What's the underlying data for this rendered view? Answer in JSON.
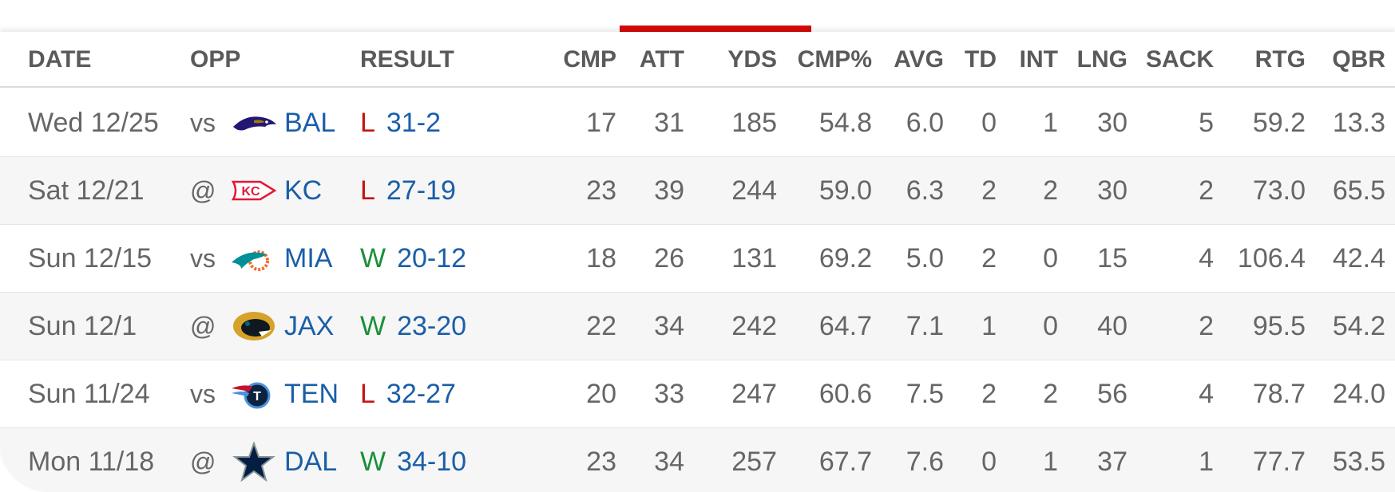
{
  "columns": {
    "date": "DATE",
    "opp": "OPP",
    "result": "RESULT",
    "cmp": "CMP",
    "att": "ATT",
    "yds": "YDS",
    "cmp_pct": "CMP%",
    "avg": "AVG",
    "td": "TD",
    "int": "INT",
    "lng": "LNG",
    "sack": "SACK",
    "rtg": "RTG",
    "qbr": "QBR"
  },
  "colors": {
    "accent": "#d50a0a",
    "link": "#1a5ea8",
    "win": "#1a8f3a",
    "loss": "#c41414"
  },
  "games": [
    {
      "date": "Wed 12/25",
      "home_away": "vs",
      "logo_icon": "ravens-logo-icon",
      "team": "BAL",
      "wl": "L",
      "score": "31-2",
      "cmp": "17",
      "att": "31",
      "yds": "185",
      "cmp_pct": "54.8",
      "avg": "6.0",
      "td": "0",
      "int": "1",
      "lng": "30",
      "sack": "5",
      "rtg": "59.2",
      "qbr": "13.3"
    },
    {
      "date": "Sat 12/21",
      "home_away": "@",
      "logo_icon": "chiefs-logo-icon",
      "team": "KC",
      "wl": "L",
      "score": "27-19",
      "cmp": "23",
      "att": "39",
      "yds": "244",
      "cmp_pct": "59.0",
      "avg": "6.3",
      "td": "2",
      "int": "2",
      "lng": "30",
      "sack": "2",
      "rtg": "73.0",
      "qbr": "65.5"
    },
    {
      "date": "Sun 12/15",
      "home_away": "vs",
      "logo_icon": "dolphins-logo-icon",
      "team": "MIA",
      "wl": "W",
      "score": "20-12",
      "cmp": "18",
      "att": "26",
      "yds": "131",
      "cmp_pct": "69.2",
      "avg": "5.0",
      "td": "2",
      "int": "0",
      "lng": "15",
      "sack": "4",
      "rtg": "106.4",
      "qbr": "42.4"
    },
    {
      "date": "Sun 12/1",
      "home_away": "@",
      "logo_icon": "jaguars-logo-icon",
      "team": "JAX",
      "wl": "W",
      "score": "23-20",
      "cmp": "22",
      "att": "34",
      "yds": "242",
      "cmp_pct": "64.7",
      "avg": "7.1",
      "td": "1",
      "int": "0",
      "lng": "40",
      "sack": "2",
      "rtg": "95.5",
      "qbr": "54.2"
    },
    {
      "date": "Sun 11/24",
      "home_away": "vs",
      "logo_icon": "titans-logo-icon",
      "team": "TEN",
      "wl": "L",
      "score": "32-27",
      "cmp": "20",
      "att": "33",
      "yds": "247",
      "cmp_pct": "60.6",
      "avg": "7.5",
      "td": "2",
      "int": "2",
      "lng": "56",
      "sack": "4",
      "rtg": "78.7",
      "qbr": "24.0"
    },
    {
      "date": "Mon 11/18",
      "home_away": "@",
      "logo_icon": "cowboys-logo-icon",
      "team": "DAL",
      "wl": "W",
      "score": "34-10",
      "cmp": "23",
      "att": "34",
      "yds": "257",
      "cmp_pct": "67.7",
      "avg": "7.6",
      "td": "0",
      "int": "1",
      "lng": "37",
      "sack": "1",
      "rtg": "77.7",
      "qbr": "53.5"
    }
  ]
}
